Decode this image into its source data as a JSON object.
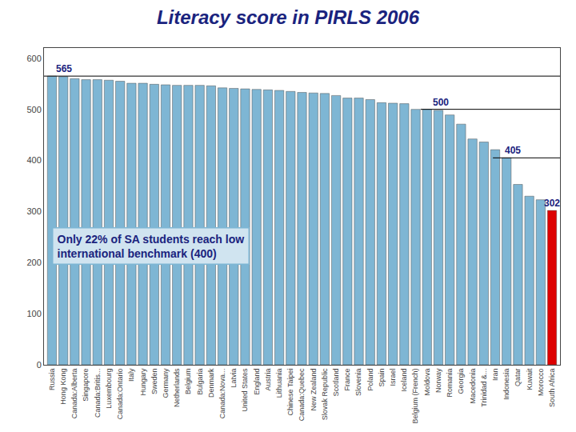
{
  "chart_data": {
    "type": "bar",
    "title": "Literacy score in PIRLS 2006",
    "categories": [
      "Russia",
      "Hong Kong",
      "Canada:Alberta",
      "Singapore",
      "Canada:Britis...",
      "Luxembourg",
      "Canada:Ontario",
      "Italy",
      "Hungary",
      "Sweden",
      "Germany",
      "Netherlands",
      "Belgium",
      "Bulgaria",
      "Denmark",
      "Canada:Nova...",
      "Latvia",
      "United States",
      "England",
      "Austria",
      "Lithuania",
      "Chinese Taipei",
      "Canada:Quebec",
      "New Zealand",
      "Slovak Republic",
      "Scotland",
      "France",
      "Slovenia",
      "Poland",
      "Spain",
      "Israel",
      "Iceland",
      "Belgium (French)",
      "Moldova",
      "Norway",
      "Romania",
      "Georgia",
      "Macedonia",
      "Trinidad &...",
      "Iran",
      "Indonesia",
      "Qatar",
      "Kuwait",
      "Morocco",
      "South Africa"
    ],
    "values": [
      565,
      564,
      560,
      558,
      558,
      557,
      555,
      551,
      551,
      549,
      548,
      547,
      547,
      547,
      546,
      542,
      541,
      540,
      539,
      538,
      537,
      535,
      533,
      532,
      531,
      527,
      522,
      522,
      519,
      513,
      512,
      511,
      500,
      500,
      498,
      489,
      471,
      442,
      436,
      421,
      405,
      353,
      330,
      323,
      302
    ],
    "colors": [
      "#7eb6d4",
      "#7eb6d4",
      "#7eb6d4",
      "#7eb6d4",
      "#7eb6d4",
      "#7eb6d4",
      "#7eb6d4",
      "#7eb6d4",
      "#7eb6d4",
      "#7eb6d4",
      "#7eb6d4",
      "#7eb6d4",
      "#7eb6d4",
      "#7eb6d4",
      "#7eb6d4",
      "#7eb6d4",
      "#7eb6d4",
      "#7eb6d4",
      "#7eb6d4",
      "#7eb6d4",
      "#7eb6d4",
      "#7eb6d4",
      "#7eb6d4",
      "#7eb6d4",
      "#7eb6d4",
      "#7eb6d4",
      "#7eb6d4",
      "#7eb6d4",
      "#7eb6d4",
      "#7eb6d4",
      "#7eb6d4",
      "#7eb6d4",
      "#7eb6d4",
      "#7eb6d4",
      "#7eb6d4",
      "#7eb6d4",
      "#7eb6d4",
      "#7eb6d4",
      "#7eb6d4",
      "#7eb6d4",
      "#7eb6d4",
      "#7eb6d4",
      "#7eb6d4",
      "#7eb6d4",
      "#dd0000"
    ],
    "ylim": [
      0,
      620
    ],
    "yticks": [
      0,
      100,
      200,
      300,
      400,
      500,
      600
    ],
    "grid": false,
    "hlines": [
      {
        "y": 565,
        "label": "565"
      },
      {
        "y": 500,
        "label": "500"
      },
      {
        "y": 405,
        "label": "405"
      }
    ],
    "annotations": [
      {
        "text": "302",
        "y": 302
      },
      {
        "text": "Only 22% of SA students reach low\ninternational benchmark (400)"
      }
    ]
  }
}
